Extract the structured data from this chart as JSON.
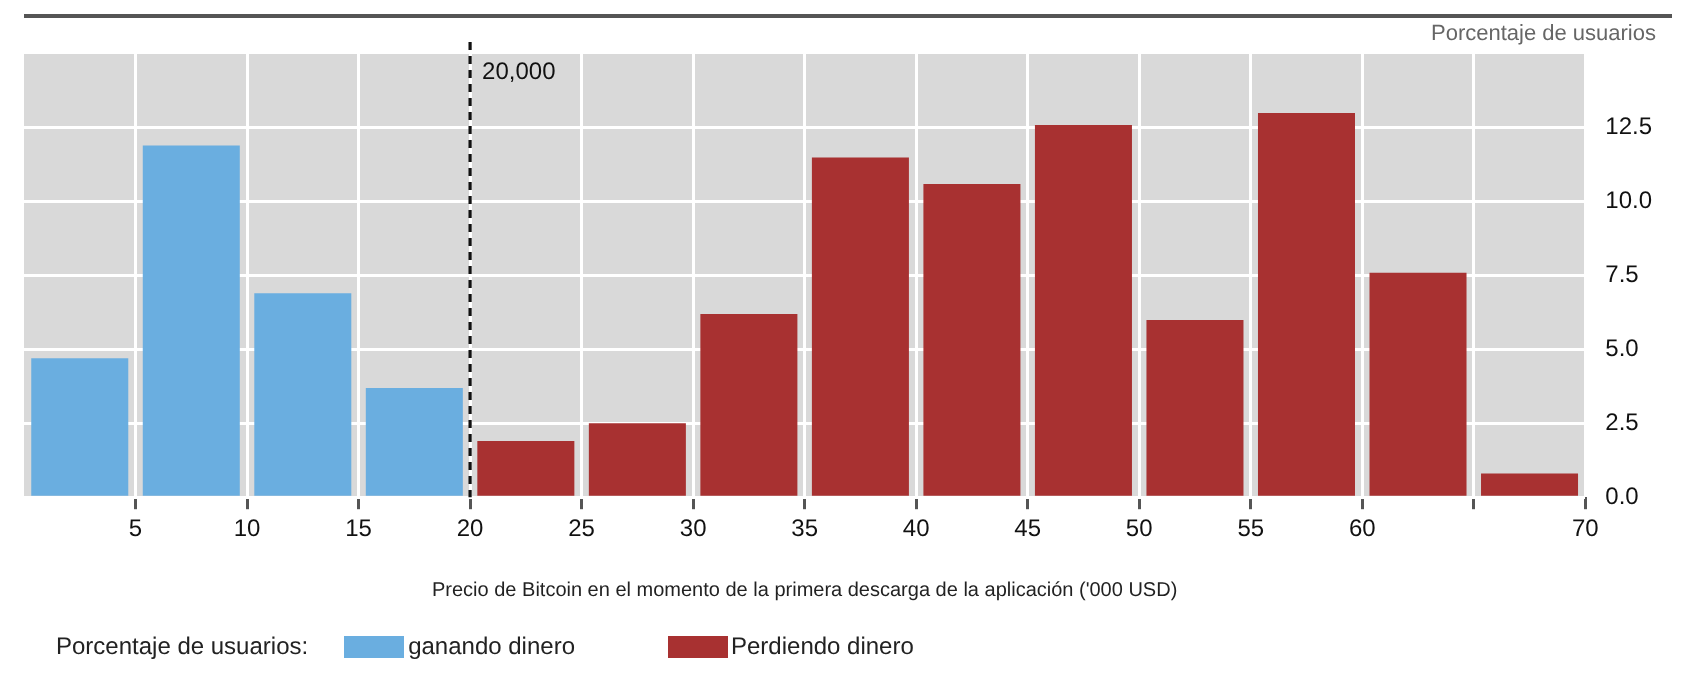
{
  "chart_data": {
    "type": "histogram",
    "xlabel": "Precio de Bitcoin en el momento de la primera descarga de la aplicación ('000 USD)",
    "ylabel": "Porcentaje de usuarios",
    "legend_title": "Porcentaje de usuarios:",
    "bins": [
      0,
      5,
      10,
      15,
      20,
      25,
      30,
      35,
      40,
      45,
      50,
      55,
      60,
      65,
      70
    ],
    "series": [
      {
        "name": "ganando dinero",
        "color": "#6aaee0",
        "values": [
          4.7,
          11.9,
          6.9,
          3.7,
          null,
          null,
          null,
          null,
          null,
          null,
          null,
          null,
          null,
          null
        ]
      },
      {
        "name": "Perdiendo dinero",
        "color": "#a83131",
        "values": [
          null,
          null,
          null,
          null,
          1.9,
          2.5,
          6.2,
          11.5,
          10.6,
          12.6,
          6.0,
          13.0,
          7.6,
          0.8
        ]
      }
    ],
    "xlim": [
      0,
      70
    ],
    "xticks": [
      5,
      10,
      15,
      20,
      25,
      30,
      35,
      40,
      45,
      50,
      55,
      60,
      {
        "value": 65,
        "label": null
      },
      70
    ],
    "ylim": [
      0,
      15
    ],
    "yticks": [
      {
        "value": 0,
        "label": "0.0"
      },
      {
        "value": 2.5,
        "label": "2.5"
      },
      {
        "value": 5,
        "label": "5.0"
      },
      {
        "value": 7.5,
        "label": "7.5"
      },
      {
        "value": 10,
        "label": "10.0"
      },
      {
        "value": 12.5,
        "label": "12.5"
      }
    ],
    "ref_lines": [
      {
        "axis": "x",
        "value": 20,
        "label": "20,000",
        "color": "#111111",
        "line_style": "dashed"
      }
    ],
    "grid": true,
    "legend": "bottom left"
  }
}
